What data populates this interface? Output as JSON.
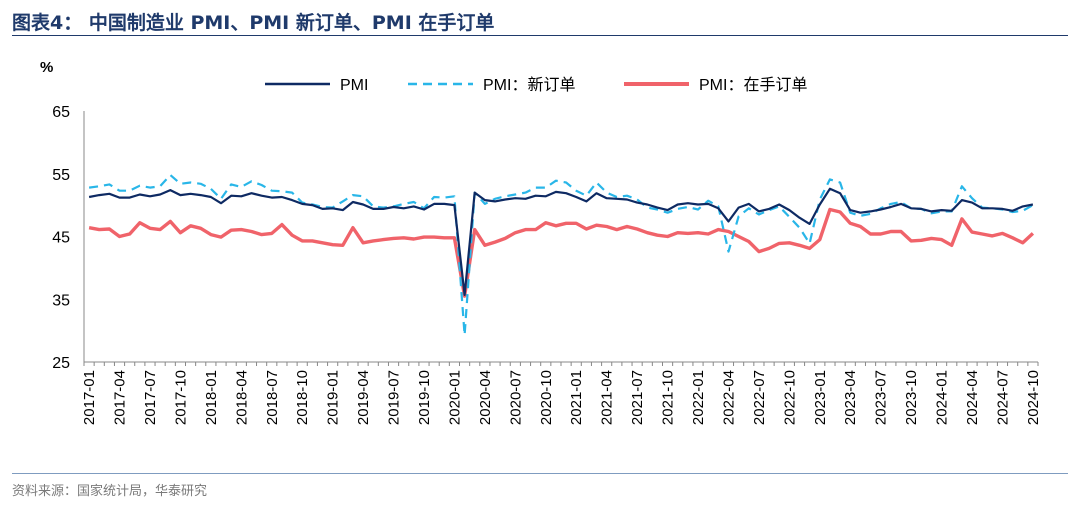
{
  "title": "图表4：  中国制造业 PMI、PMI 新订单、PMI 在手订单",
  "source": "资料来源：国家统计局，华泰研究",
  "colors": {
    "pmi": "#0e2a63",
    "new_orders": "#29b6e8",
    "backlog": "#f0636a",
    "title": "#1f3a6b"
  },
  "chart_data": {
    "type": "line",
    "ylabel": "%",
    "ylim": [
      25,
      65
    ],
    "yticks": [
      25,
      35,
      45,
      55,
      65
    ],
    "start": "2017-01",
    "tick_labels": [
      "2017-01",
      "2017-04",
      "2017-07",
      "2017-10",
      "2018-01",
      "2018-04",
      "2018-07",
      "2018-10",
      "2019-01",
      "2019-04",
      "2019-07",
      "2019-10",
      "2020-01",
      "2020-04",
      "2020-07",
      "2020-10",
      "2021-01",
      "2021-04",
      "2021-07",
      "2021-10",
      "2022-01",
      "2022-04",
      "2022-07",
      "2022-10",
      "2023-01",
      "2023-04",
      "2023-07",
      "2023-10",
      "2024-01",
      "2024-04",
      "2024-07",
      "2024-10"
    ],
    "series": [
      {
        "name": "PMI",
        "style": "solid",
        "values": [
          51.3,
          51.6,
          51.8,
          51.2,
          51.2,
          51.7,
          51.4,
          51.7,
          52.4,
          51.6,
          51.8,
          51.6,
          51.3,
          50.3,
          51.5,
          51.4,
          51.9,
          51.5,
          51.2,
          51.3,
          50.8,
          50.2,
          50.0,
          49.4,
          49.5,
          49.2,
          50.5,
          50.1,
          49.4,
          49.4,
          49.7,
          49.5,
          49.8,
          49.3,
          50.2,
          50.2,
          50.0,
          35.7,
          52.0,
          50.8,
          50.6,
          50.9,
          51.1,
          51.0,
          51.5,
          51.4,
          52.1,
          51.9,
          51.3,
          50.6,
          51.9,
          51.1,
          51.0,
          50.9,
          50.4,
          50.1,
          49.6,
          49.2,
          50.1,
          50.3,
          50.1,
          50.2,
          49.5,
          47.4,
          49.6,
          50.2,
          49.0,
          49.4,
          50.1,
          49.2,
          48.0,
          47.0,
          50.1,
          52.6,
          51.9,
          49.2,
          48.8,
          49.0,
          49.3,
          49.7,
          50.2,
          49.5,
          49.4,
          49.0,
          49.2,
          49.1,
          50.8,
          50.4,
          49.5,
          49.5,
          49.4,
          49.1,
          49.8,
          50.1
        ]
      },
      {
        "name": "PMI：新订单",
        "style": "dashed",
        "values": [
          52.8,
          53.0,
          53.3,
          52.3,
          52.3,
          53.1,
          52.8,
          53.0,
          54.8,
          53.4,
          53.6,
          53.4,
          52.6,
          51.0,
          53.3,
          52.9,
          53.8,
          53.2,
          52.3,
          52.2,
          52.0,
          50.4,
          50.1,
          49.7,
          49.6,
          50.6,
          51.6,
          51.4,
          49.8,
          49.6,
          49.8,
          50.2,
          50.5,
          49.5,
          51.3,
          51.2,
          51.4,
          29.3,
          52.0,
          50.2,
          51.0,
          51.4,
          51.7,
          52.0,
          52.8,
          52.8,
          53.9,
          53.6,
          52.3,
          51.5,
          53.6,
          52.0,
          51.3,
          51.5,
          50.9,
          49.6,
          49.3,
          48.8,
          49.4,
          49.7,
          49.3,
          50.7,
          49.8,
          42.6,
          48.2,
          49.5,
          48.5,
          49.2,
          49.8,
          48.1,
          46.4,
          43.9,
          50.9,
          54.1,
          53.6,
          48.8,
          48.3,
          48.6,
          49.5,
          50.2,
          50.5,
          49.5,
          49.4,
          48.7,
          49.0,
          49.0,
          53.0,
          51.1,
          49.6,
          49.5,
          49.3,
          48.9,
          49.1,
          50.0
        ]
      },
      {
        "name": "PMI：在手订单",
        "style": "solid",
        "values": [
          46.4,
          46.1,
          46.2,
          45.0,
          45.4,
          47.2,
          46.3,
          46.1,
          47.4,
          45.6,
          46.7,
          46.3,
          45.3,
          44.9,
          46.0,
          46.1,
          45.8,
          45.3,
          45.5,
          46.9,
          45.2,
          44.3,
          44.3,
          44.0,
          43.7,
          43.6,
          46.4,
          44.0,
          44.3,
          44.5,
          44.7,
          44.8,
          44.6,
          44.9,
          44.9,
          44.8,
          44.8,
          35.5,
          46.1,
          43.6,
          44.1,
          44.7,
          45.6,
          46.1,
          46.1,
          47.2,
          46.7,
          47.1,
          47.1,
          46.2,
          46.8,
          46.6,
          46.1,
          46.6,
          46.2,
          45.6,
          45.2,
          45.0,
          45.6,
          45.5,
          45.6,
          45.4,
          46.1,
          45.8,
          45.0,
          44.2,
          42.6,
          43.1,
          43.9,
          44.0,
          43.6,
          43.1,
          44.5,
          49.3,
          48.9,
          47.1,
          46.6,
          45.4,
          45.4,
          45.8,
          45.8,
          44.3,
          44.4,
          44.7,
          44.5,
          43.6,
          47.8,
          45.7,
          45.4,
          45.1,
          45.5,
          44.8,
          44.0,
          45.5
        ]
      }
    ]
  }
}
